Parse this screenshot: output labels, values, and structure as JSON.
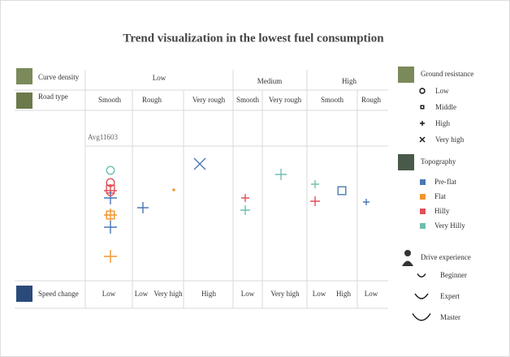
{
  "title": "Trend visualization in the lowest fuel consumption",
  "rows": {
    "curve_density": {
      "label": "Curve density",
      "values": [
        "Low",
        "Medium",
        "High"
      ]
    },
    "road_type": {
      "label": "Road type",
      "values": [
        "Smooth",
        "Rough",
        "Very rough",
        "Smooth",
        "Very rough",
        "Smooth",
        "Rough"
      ]
    },
    "speed_change": {
      "label": "Speed change",
      "values": [
        "Low",
        "Low",
        "Very high",
        "High",
        "Low",
        "Very high",
        "Low",
        "High",
        "Low"
      ]
    }
  },
  "avg_label": "Avg11603",
  "legends": {
    "ground_resistance": {
      "title": "Ground resistance",
      "items": [
        "Low",
        "Middle",
        "High",
        "Very high"
      ]
    },
    "topography": {
      "title": "Topography",
      "items": [
        {
          "label": "Pre-flat",
          "color": "#4a78b5"
        },
        {
          "label": "Flat",
          "color": "#f0962e"
        },
        {
          "label": "Hilly",
          "color": "#e0505a"
        },
        {
          "label": "Very Hilly",
          "color": "#6fbfb0"
        }
      ]
    },
    "drive_experience": {
      "title": "Drive experience",
      "items": [
        "Beginner",
        "Expert",
        "Master"
      ]
    }
  }
}
